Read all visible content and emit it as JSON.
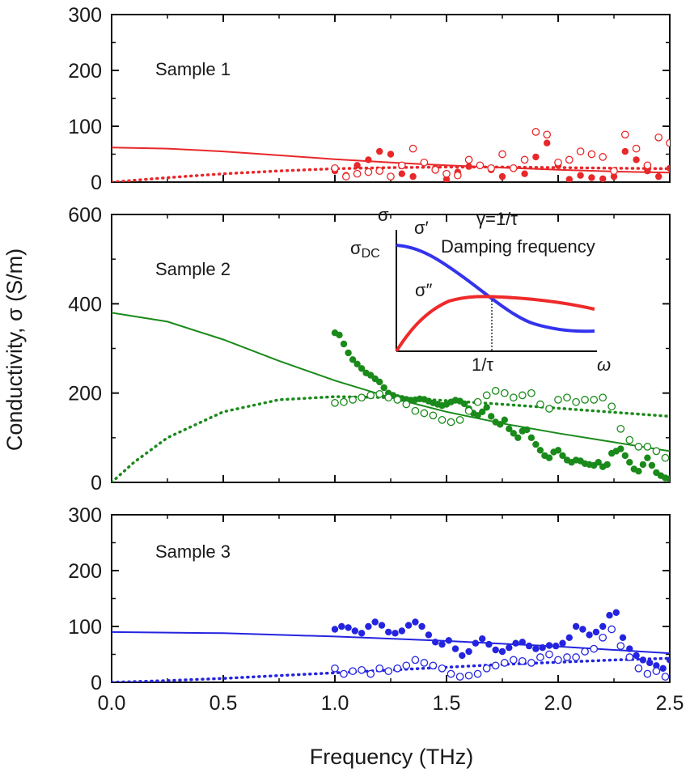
{
  "figure": {
    "ylabel": "Conductivity, σ  (S/m)",
    "xlabel": "Frequency (THz)"
  },
  "chart_data": [
    {
      "type": "scatter",
      "label": "Sample 1",
      "color": "#e8282a",
      "xlim": [
        0,
        2.5
      ],
      "ylim": [
        0,
        300
      ],
      "yticks": [
        "0",
        "100",
        "200",
        "300"
      ],
      "xticks": [
        "0.0",
        "0.5",
        "1.0",
        "1.5",
        "2.0",
        "2.5"
      ],
      "series": [
        {
          "kind": "fit-real",
          "style": "solid",
          "x": [
            0,
            0.25,
            0.5,
            0.75,
            1.0,
            1.25,
            1.5,
            1.75,
            2.0,
            2.25,
            2.5
          ],
          "y": [
            62,
            60,
            55,
            48,
            41,
            35,
            30,
            26,
            22,
            19,
            17
          ]
        },
        {
          "kind": "fit-imag",
          "style": "dotted",
          "x": [
            0,
            0.25,
            0.5,
            0.75,
            1.0,
            1.25,
            1.5,
            1.75,
            2.0,
            2.25,
            2.5
          ],
          "y": [
            0,
            8,
            15,
            20,
            24,
            26,
            27,
            27,
            26,
            25,
            24
          ]
        },
        {
          "kind": "data-real",
          "marker": "filled",
          "x": [
            1.0,
            1.05,
            1.1,
            1.15,
            1.2,
            1.25,
            1.3,
            1.35,
            1.4,
            1.45,
            1.5,
            1.55,
            1.6,
            1.65,
            1.7,
            1.75,
            1.8,
            1.85,
            1.9,
            1.95,
            2.0,
            2.05,
            2.1,
            2.15,
            2.2,
            2.25,
            2.3,
            2.35,
            2.4,
            2.45,
            2.5
          ],
          "y": [
            20,
            12,
            30,
            40,
            55,
            50,
            15,
            10,
            35,
            25,
            5,
            18,
            28,
            30,
            22,
            10,
            25,
            15,
            45,
            70,
            30,
            5,
            12,
            8,
            6,
            10,
            55,
            40,
            20,
            10,
            25
          ]
        },
        {
          "kind": "data-imag",
          "marker": "open",
          "x": [
            1.0,
            1.05,
            1.1,
            1.15,
            1.2,
            1.25,
            1.3,
            1.35,
            1.4,
            1.45,
            1.5,
            1.55,
            1.6,
            1.65,
            1.7,
            1.75,
            1.8,
            1.85,
            1.9,
            1.95,
            2.0,
            2.05,
            2.1,
            2.15,
            2.2,
            2.25,
            2.3,
            2.35,
            2.4,
            2.45,
            2.5
          ],
          "y": [
            25,
            10,
            15,
            18,
            20,
            10,
            30,
            60,
            35,
            22,
            15,
            12,
            40,
            30,
            25,
            50,
            25,
            40,
            90,
            85,
            35,
            40,
            55,
            50,
            45,
            20,
            85,
            60,
            30,
            80,
            70
          ]
        }
      ]
    },
    {
      "type": "scatter",
      "label": "Sample 2",
      "color": "#1a8a1a",
      "xlim": [
        0,
        2.5
      ],
      "ylim": [
        0,
        600
      ],
      "yticks": [
        "0",
        "200",
        "400",
        "600"
      ],
      "xticks": [
        "0.0",
        "0.5",
        "1.0",
        "1.5",
        "2.0",
        "2.5"
      ],
      "series": [
        {
          "kind": "fit-real",
          "style": "solid",
          "x": [
            0,
            0.25,
            0.5,
            0.75,
            1.0,
            1.25,
            1.5,
            1.75,
            2.0,
            2.25,
            2.5
          ],
          "y": [
            380,
            360,
            320,
            272,
            228,
            190,
            158,
            132,
            110,
            90,
            70
          ]
        },
        {
          "kind": "fit-imag",
          "style": "dotted",
          "x": [
            0,
            0.1,
            0.25,
            0.5,
            0.75,
            1.0,
            1.25,
            1.5,
            1.75,
            2.0,
            2.25,
            2.5
          ],
          "y": [
            0,
            45,
            100,
            158,
            185,
            192,
            190,
            183,
            175,
            166,
            157,
            148
          ]
        },
        {
          "kind": "data-real",
          "marker": "filled",
          "x": [
            1.0,
            1.02,
            1.04,
            1.06,
            1.08,
            1.1,
            1.12,
            1.14,
            1.16,
            1.18,
            1.2,
            1.22,
            1.24,
            1.26,
            1.28,
            1.3,
            1.32,
            1.34,
            1.36,
            1.38,
            1.4,
            1.42,
            1.44,
            1.46,
            1.48,
            1.5,
            1.52,
            1.54,
            1.56,
            1.58,
            1.6,
            1.62,
            1.64,
            1.66,
            1.68,
            1.7,
            1.72,
            1.74,
            1.76,
            1.78,
            1.8,
            1.82,
            1.84,
            1.86,
            1.88,
            1.9,
            1.92,
            1.94,
            1.96,
            1.98,
            2.0,
            2.02,
            2.04,
            2.06,
            2.08,
            2.1,
            2.12,
            2.14,
            2.16,
            2.18,
            2.2,
            2.22,
            2.24,
            2.26,
            2.28,
            2.3,
            2.32,
            2.34,
            2.36,
            2.38,
            2.4,
            2.42,
            2.44,
            2.46,
            2.48,
            2.5
          ],
          "y": [
            335,
            330,
            310,
            290,
            275,
            265,
            255,
            245,
            240,
            232,
            225,
            212,
            200,
            195,
            190,
            188,
            186,
            184,
            185,
            187,
            186,
            182,
            178,
            175,
            172,
            175,
            180,
            184,
            182,
            176,
            165,
            155,
            150,
            158,
            168,
            148,
            135,
            130,
            140,
            120,
            110,
            100,
            115,
            118,
            100,
            85,
            72,
            60,
            55,
            68,
            72,
            60,
            50,
            45,
            50,
            48,
            42,
            40,
            38,
            45,
            35,
            40,
            65,
            70,
            75,
            60,
            45,
            30,
            25,
            40,
            55,
            38,
            22,
            15,
            10,
            8
          ]
        },
        {
          "kind": "data-imag",
          "marker": "open",
          "x": [
            1.0,
            1.04,
            1.08,
            1.12,
            1.16,
            1.2,
            1.24,
            1.28,
            1.32,
            1.36,
            1.4,
            1.44,
            1.48,
            1.52,
            1.56,
            1.6,
            1.64,
            1.68,
            1.72,
            1.76,
            1.8,
            1.84,
            1.88,
            1.92,
            1.96,
            2.0,
            2.04,
            2.08,
            2.12,
            2.16,
            2.2,
            2.24,
            2.28,
            2.32,
            2.36,
            2.4,
            2.44,
            2.48
          ],
          "y": [
            178,
            180,
            185,
            190,
            195,
            198,
            190,
            185,
            175,
            160,
            155,
            150,
            140,
            135,
            140,
            160,
            180,
            195,
            205,
            200,
            190,
            195,
            200,
            175,
            165,
            185,
            190,
            180,
            185,
            185,
            190,
            170,
            120,
            95,
            80,
            80,
            70,
            55
          ]
        }
      ]
    },
    {
      "type": "scatter",
      "label": "Sample 3",
      "color": "#2424e0",
      "xlim": [
        0,
        2.5
      ],
      "ylim": [
        0,
        300
      ],
      "yticks": [
        "0",
        "100",
        "200",
        "300"
      ],
      "xticks": [
        "0.0",
        "0.5",
        "1.0",
        "1.5",
        "2.0",
        "2.5"
      ],
      "series": [
        {
          "kind": "fit-real",
          "style": "solid",
          "x": [
            0,
            0.5,
            1.0,
            1.5,
            2.0,
            2.5
          ],
          "y": [
            90,
            88,
            82,
            74,
            64,
            52
          ]
        },
        {
          "kind": "fit-imag",
          "style": "dotted",
          "x": [
            0,
            0.25,
            0.5,
            0.75,
            1.0,
            1.25,
            1.5,
            1.75,
            2.0,
            2.25,
            2.5
          ],
          "y": [
            0,
            3,
            7,
            12,
            17,
            22,
            27,
            32,
            36,
            40,
            43
          ]
        },
        {
          "kind": "data-real",
          "marker": "filled",
          "x": [
            1.0,
            1.03,
            1.06,
            1.09,
            1.12,
            1.15,
            1.18,
            1.21,
            1.24,
            1.27,
            1.3,
            1.33,
            1.36,
            1.39,
            1.42,
            1.45,
            1.48,
            1.51,
            1.54,
            1.57,
            1.6,
            1.63,
            1.66,
            1.69,
            1.72,
            1.75,
            1.78,
            1.81,
            1.84,
            1.87,
            1.9,
            1.93,
            1.96,
            1.99,
            2.02,
            2.05,
            2.08,
            2.11,
            2.14,
            2.17,
            2.2,
            2.23,
            2.26,
            2.29,
            2.32,
            2.35,
            2.38,
            2.41,
            2.44,
            2.47,
            2.5
          ],
          "y": [
            95,
            100,
            98,
            92,
            88,
            100,
            108,
            102,
            90,
            88,
            92,
            102,
            108,
            100,
            85,
            72,
            68,
            75,
            60,
            48,
            55,
            70,
            78,
            68,
            58,
            55,
            62,
            70,
            72,
            65,
            60,
            62,
            66,
            65,
            70,
            80,
            100,
            95,
            85,
            90,
            100,
            120,
            125,
            80,
            60,
            48,
            40,
            35,
            30,
            25,
            40
          ]
        },
        {
          "kind": "data-imag",
          "marker": "open",
          "x": [
            1.0,
            1.04,
            1.08,
            1.12,
            1.16,
            1.2,
            1.24,
            1.28,
            1.32,
            1.36,
            1.4,
            1.44,
            1.48,
            1.52,
            1.56,
            1.6,
            1.64,
            1.68,
            1.72,
            1.76,
            1.8,
            1.84,
            1.88,
            1.92,
            1.96,
            2.0,
            2.04,
            2.08,
            2.12,
            2.16,
            2.2,
            2.24,
            2.28,
            2.32,
            2.36,
            2.4,
            2.44,
            2.48
          ],
          "y": [
            25,
            15,
            20,
            22,
            15,
            25,
            20,
            25,
            30,
            40,
            35,
            30,
            25,
            15,
            10,
            12,
            15,
            25,
            30,
            35,
            40,
            38,
            35,
            45,
            50,
            40,
            45,
            45,
            55,
            60,
            80,
            95,
            65,
            45,
            25,
            15,
            20,
            10
          ]
        }
      ]
    }
  ],
  "inset": {
    "y_symbol": "σ",
    "x_symbol": "ω",
    "sigma_dc": "σ",
    "sigma_dc_sub": "DC",
    "sigma_real": "σ′",
    "sigma_imag": "σ″",
    "gamma_eq": "γ=1/τ",
    "damping_label": "Damping frequency",
    "tick_label": "1/τ",
    "real_color": "#3333ee",
    "imag_color": "#ee2a2a"
  }
}
